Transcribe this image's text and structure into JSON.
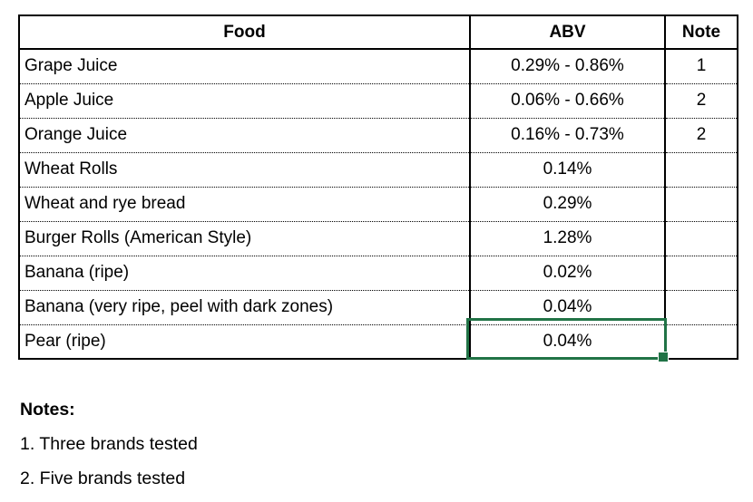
{
  "table": {
    "headers": {
      "food": "Food",
      "abv": "ABV",
      "note": "Note"
    },
    "rows": [
      {
        "food": "Grape Juice",
        "abv": "0.29% - 0.86%",
        "note": "1"
      },
      {
        "food": "Apple Juice",
        "abv": "0.06% - 0.66%",
        "note": "2"
      },
      {
        "food": "Orange Juice",
        "abv": "0.16% - 0.73%",
        "note": "2"
      },
      {
        "food": "Wheat Rolls",
        "abv": "0.14%",
        "note": ""
      },
      {
        "food": "Wheat and rye bread",
        "abv": "0.29%",
        "note": ""
      },
      {
        "food": "Burger Rolls (American Style)",
        "abv": "1.28%",
        "note": ""
      },
      {
        "food": "Banana (ripe)",
        "abv": "0.02%",
        "note": ""
      },
      {
        "food": "Banana (very ripe, peel with dark zones)",
        "abv": "0.04%",
        "note": ""
      },
      {
        "food": "Pear (ripe)",
        "abv": "0.04%",
        "note": ""
      }
    ]
  },
  "selection": {
    "selected_row": "Pear (ripe)",
    "selected_column": "ABV",
    "selected_value": "0.04%",
    "color": "#217346"
  },
  "notes": {
    "title": "Notes:",
    "items": [
      "1. Three brands tested",
      "2. Five brands tested"
    ]
  }
}
